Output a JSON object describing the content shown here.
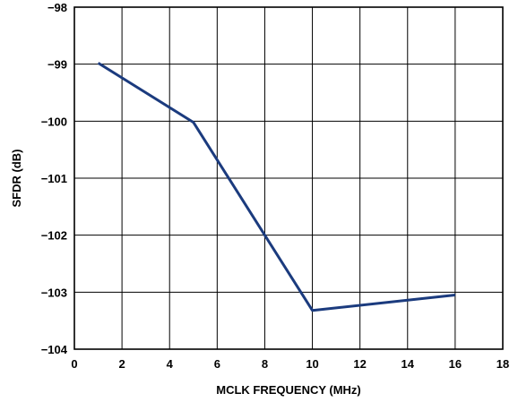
{
  "chart_data": {
    "type": "line",
    "xlabel": "MCLK FREQUENCY (MHz)",
    "ylabel": "SFDR (dB)",
    "xlim": [
      0,
      18
    ],
    "ylim": [
      -104,
      -98
    ],
    "x_ticks": [
      0,
      2,
      4,
      6,
      8,
      10,
      12,
      14,
      16,
      18
    ],
    "x_tick_labels": [
      "0",
      "2",
      "4",
      "6",
      "8",
      "10",
      "12",
      "14",
      "16",
      "18"
    ],
    "y_ticks": [
      -98,
      -99,
      -100,
      -101,
      -102,
      -103,
      -104
    ],
    "y_tick_labels": [
      "−98",
      "−99",
      "−100",
      "−101",
      "−102",
      "−103",
      "−104"
    ],
    "grid": true,
    "series": [
      {
        "x": [
          1,
          5,
          10,
          16
        ],
        "y": [
          -98.98,
          -100.02,
          -103.32,
          -103.05
        ],
        "color": "#1b3b7e"
      }
    ]
  }
}
